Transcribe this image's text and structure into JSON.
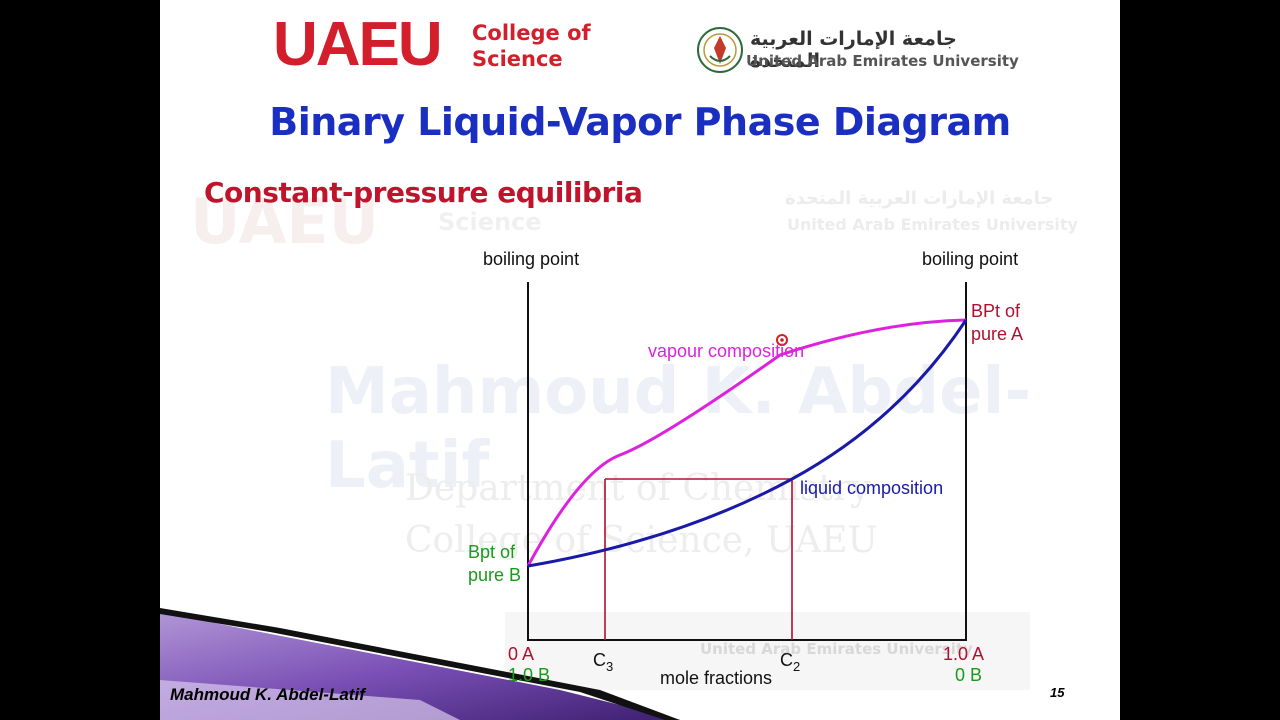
{
  "header": {
    "logo_text": "UAEU",
    "college_line1": "College of",
    "college_line2": "Science",
    "university_ar": "جامعة الإمارات العربية المتحدة",
    "university_en": "United Arab Emirates University"
  },
  "slide": {
    "title": "Binary Liquid-Vapor Phase Diagram",
    "subtitle": "Constant-pressure equilibria",
    "footer_author": "Mahmoud K. Abdel-Latif",
    "page_number": "15"
  },
  "watermark": {
    "name": "Mahmoud K. Abdel-Latif",
    "department": "Department of Chemistry",
    "college": "College of Science, UAEU"
  },
  "diagram": {
    "left_axis_label": "boiling point",
    "right_axis_label": "boiling point",
    "bpt_a_line1": "BPt of",
    "bpt_a_line2": "pure A",
    "bpt_b_line1": "Bpt of",
    "bpt_b_line2": "pure B",
    "vapour_label": "vapour composition",
    "liquid_label": "liquid composition",
    "x_left_top": "0 A",
    "x_left_bottom": "1.0 B",
    "x_right_top": "1.0 A",
    "x_right_bottom": "0 B",
    "c3_main": "C",
    "c3_sub": "3",
    "c2_main": "C",
    "c2_sub": "2",
    "x_axis_label": "mole fractions",
    "colors": {
      "vapour": "#dd22dd",
      "liquid": "#1a1aa8",
      "tie_line": "#b01030",
      "bpt_a": "#b01030",
      "bpt_b": "#1a9a1a",
      "axis_green": "#1a9a1a",
      "axis_red": "#b01030"
    }
  }
}
